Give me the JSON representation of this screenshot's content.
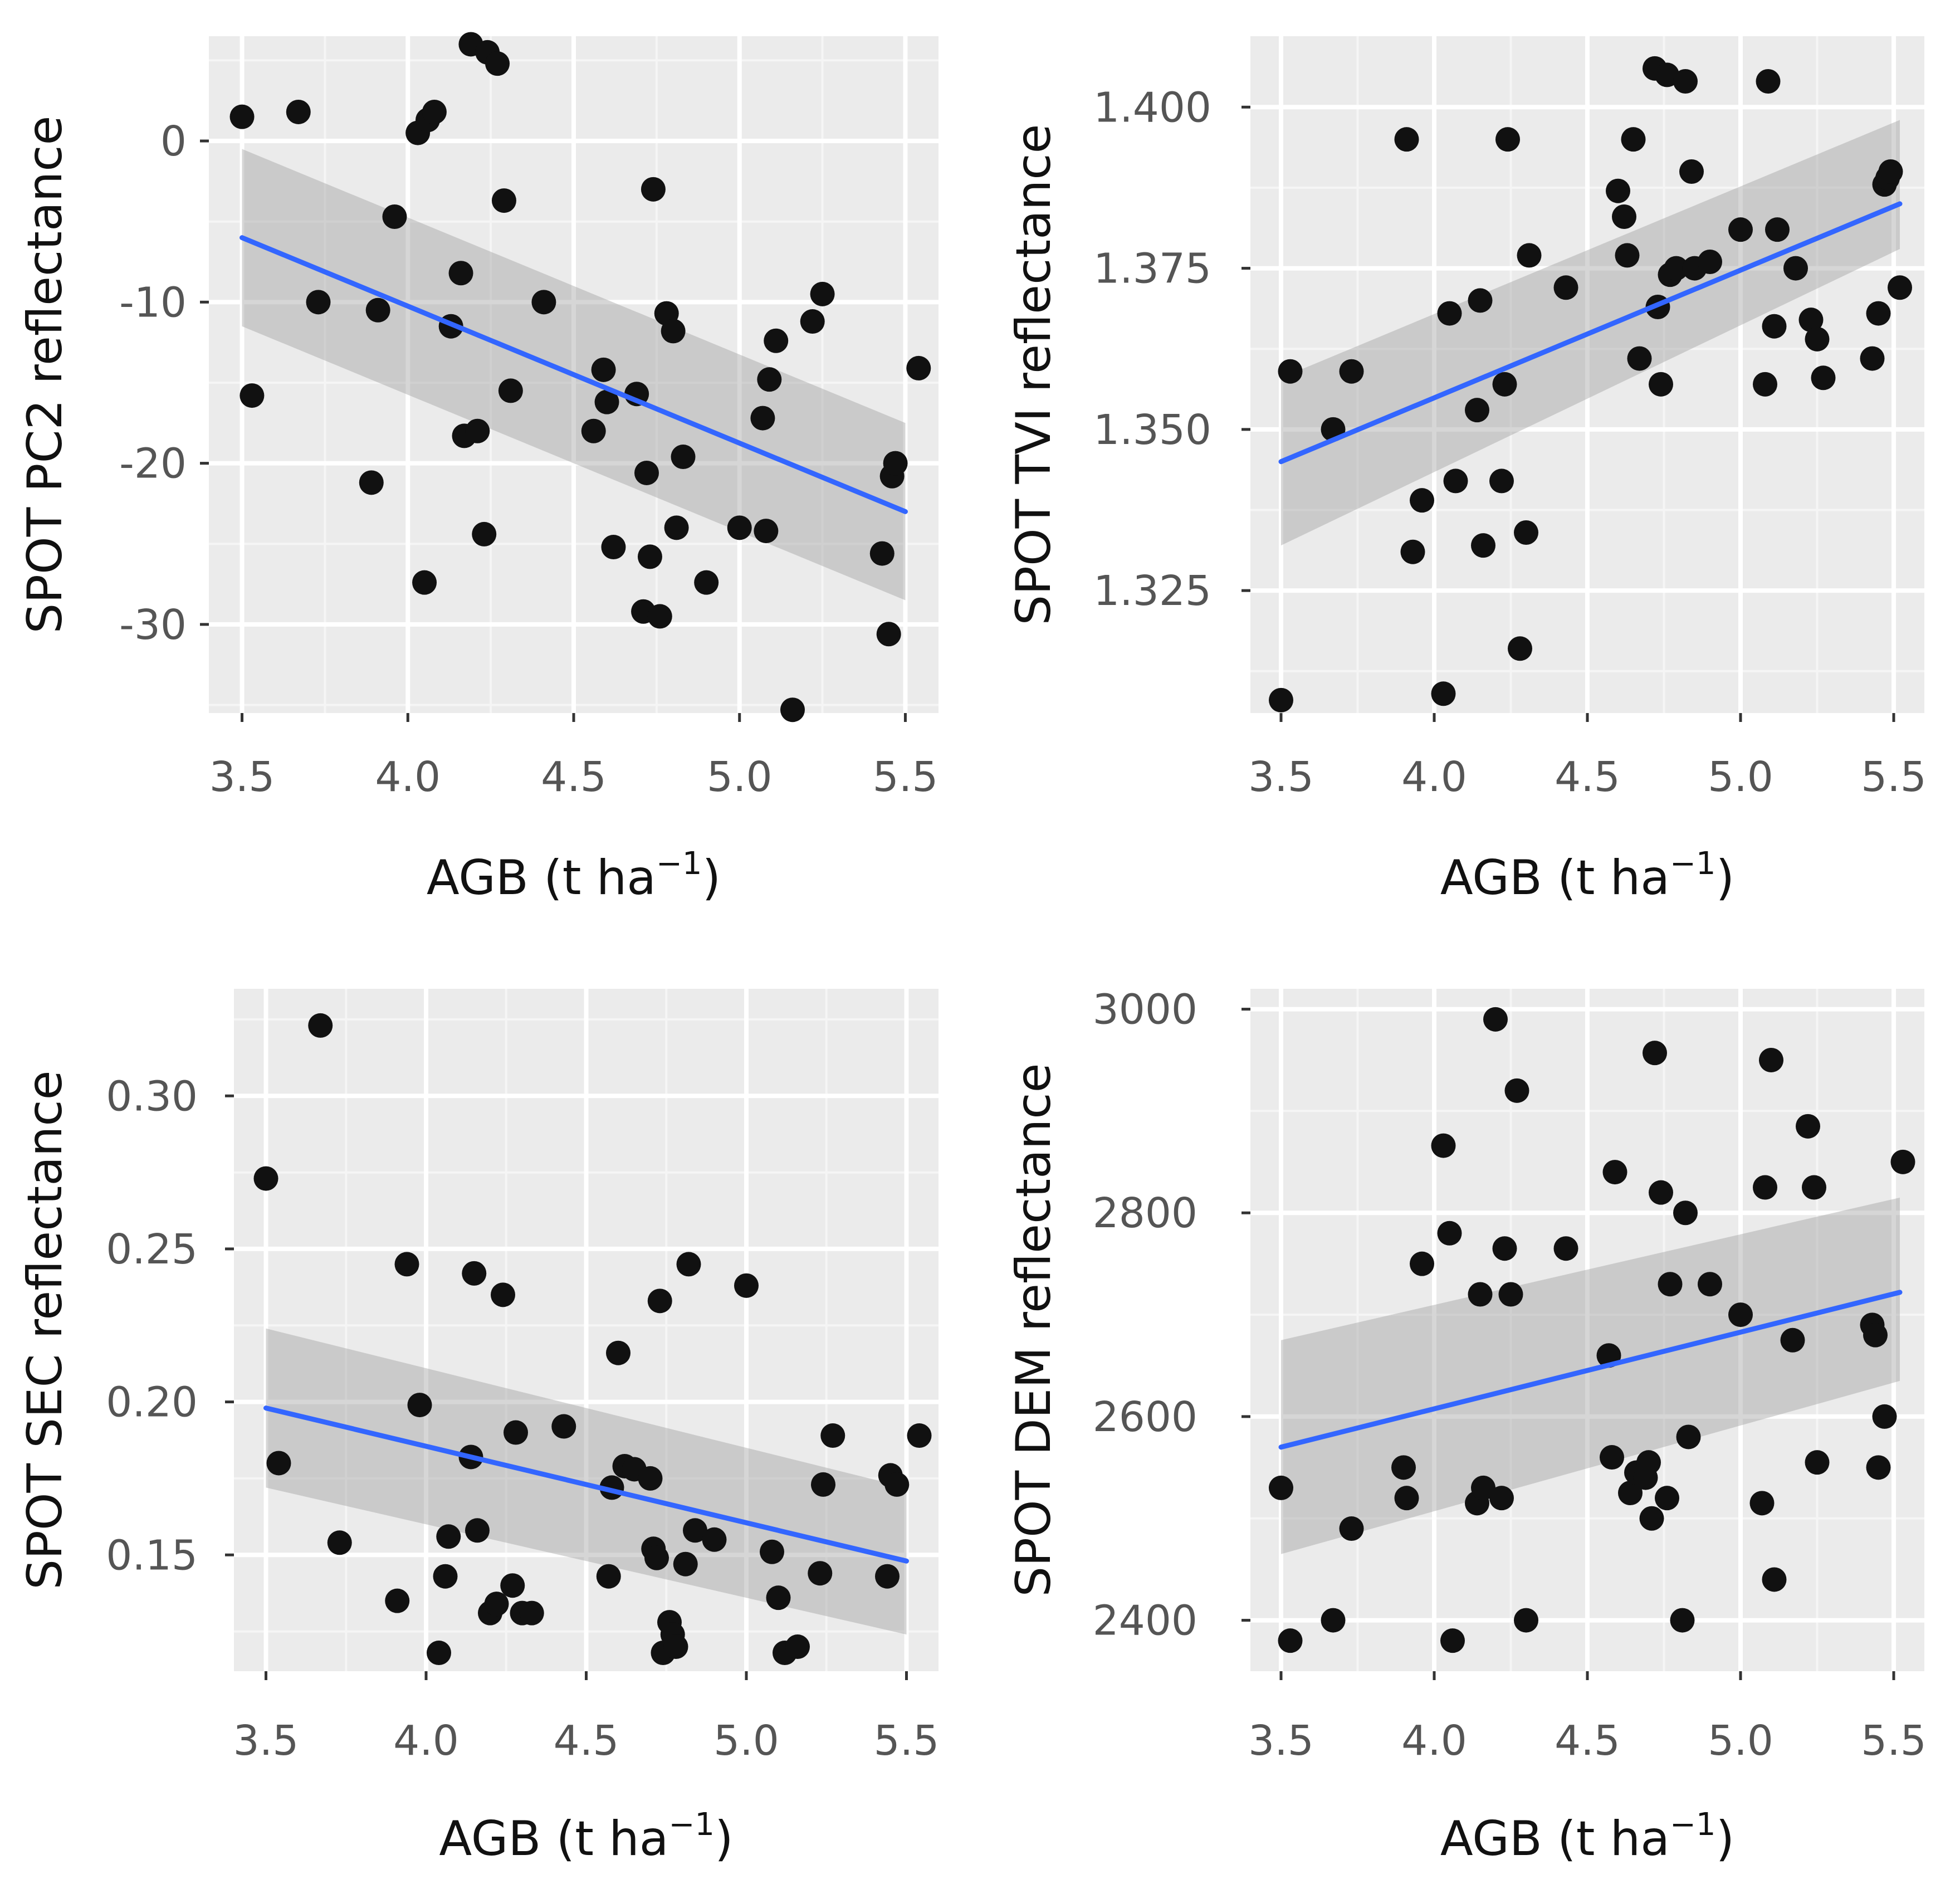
{
  "colors": {
    "panel_bg": "#ebebeb",
    "grid_major": "#ffffff",
    "grid_minor": "#f5f5f5",
    "point": "#111111",
    "fit_line": "#3366ff",
    "ci_band": "#999999"
  },
  "chart_data": [
    {
      "type": "scatter",
      "title": "",
      "xlabel": "AGB (t ha",
      "xlabel_sup": "−1",
      "xlabel_close": ")",
      "ylabel": "SPOT PC2 reflectance",
      "xlim": [
        3.4,
        5.6
      ],
      "ylim": [
        -35.5,
        6.5
      ],
      "xticks": [
        3.5,
        4.0,
        4.5,
        5.0,
        5.5
      ],
      "xtick_labels": [
        "3.5",
        "4.0",
        "4.5",
        "5.0",
        "5.5"
      ],
      "yticks": [
        0,
        -10,
        -20,
        -30
      ],
      "ytick_labels": [
        "0",
        "-10",
        "-20",
        "-30"
      ],
      "x": [
        3.5,
        3.53,
        3.67,
        3.73,
        3.89,
        3.91,
        3.96,
        4.03,
        4.05,
        4.06,
        4.08,
        4.13,
        4.16,
        4.17,
        4.19,
        4.21,
        4.23,
        4.24,
        4.27,
        4.29,
        4.31,
        4.41,
        4.56,
        4.59,
        4.6,
        4.62,
        4.69,
        4.71,
        4.72,
        4.73,
        4.74,
        4.76,
        4.78,
        4.8,
        4.81,
        4.83,
        4.9,
        5.0,
        5.07,
        5.08,
        5.09,
        5.11,
        5.16,
        5.22,
        5.25,
        5.43,
        5.45,
        5.46,
        5.47,
        5.54
      ],
      "y": [
        1.5,
        -15.8,
        1.8,
        -10,
        -21.2,
        -10.5,
        -4.7,
        0.5,
        -27.4,
        1.3,
        1.8,
        -11.5,
        -8.2,
        -18.3,
        6,
        -18,
        -24.4,
        5.5,
        4.8,
        -3.7,
        -15.5,
        -10,
        -18,
        -14.2,
        -16.2,
        -25.2,
        -15.7,
        -29.2,
        -20.6,
        -25.8,
        -3,
        -29.5,
        -10.7,
        -11.8,
        -24,
        -19.6,
        -27.4,
        -24,
        -17.2,
        -24.2,
        -14.8,
        -12.4,
        -35.3,
        -11.2,
        -9.5,
        -25.6,
        -30.6,
        -20.8,
        -20,
        -14.1
      ],
      "fit": {
        "x": [
          3.5,
          5.5
        ],
        "y": [
          -6,
          -23
        ],
        "ci_low": [
          -11.5,
          -28.5
        ],
        "ci_high": [
          -0.5,
          -17.5
        ]
      }
    },
    {
      "type": "scatter",
      "title": "",
      "xlabel": "AGB (t ha",
      "xlabel_sup": "−1",
      "xlabel_close": ")",
      "ylabel": "SPOT TVI reflectance",
      "xlim": [
        3.4,
        5.6
      ],
      "ylim": [
        1.306,
        1.411
      ],
      "xticks": [
        3.5,
        4.0,
        4.5,
        5.0,
        5.5
      ],
      "xtick_labels": [
        "3.5",
        "4.0",
        "4.5",
        "5.0",
        "5.5"
      ],
      "yticks": [
        1.4,
        1.375,
        1.35,
        1.325
      ],
      "ytick_labels": [
        "1.400",
        "1.375",
        "1.350",
        "1.325"
      ],
      "x": [
        3.5,
        3.53,
        3.67,
        3.73,
        3.91,
        3.93,
        3.96,
        4.03,
        4.05,
        4.07,
        4.14,
        4.15,
        4.16,
        4.22,
        4.23,
        4.24,
        4.28,
        4.3,
        4.31,
        4.43,
        4.6,
        4.62,
        4.63,
        4.65,
        4.67,
        4.72,
        4.73,
        4.74,
        4.76,
        4.77,
        4.79,
        4.82,
        4.84,
        4.85,
        4.9,
        5.0,
        5.08,
        5.09,
        5.11,
        5.12,
        5.18,
        5.23,
        5.25,
        5.27,
        5.43,
        5.45,
        5.47,
        5.48,
        5.49,
        5.52
      ],
      "y": [
        1.308,
        1.359,
        1.35,
        1.359,
        1.395,
        1.331,
        1.339,
        1.309,
        1.368,
        1.342,
        1.353,
        1.37,
        1.332,
        1.342,
        1.357,
        1.395,
        1.316,
        1.334,
        1.377,
        1.372,
        1.387,
        1.383,
        1.377,
        1.395,
        1.361,
        1.406,
        1.369,
        1.357,
        1.405,
        1.374,
        1.375,
        1.404,
        1.39,
        1.375,
        1.376,
        1.381,
        1.357,
        1.404,
        1.366,
        1.381,
        1.375,
        1.367,
        1.364,
        1.358,
        1.361,
        1.368,
        1.388,
        1.389,
        1.39,
        1.372
      ],
      "fit": {
        "x": [
          3.5,
          5.52
        ],
        "y": [
          1.345,
          1.385
        ],
        "ci_low": [
          1.332,
          1.378
        ],
        "ci_high": [
          1.358,
          1.398
        ]
      }
    },
    {
      "type": "scatter",
      "title": "",
      "xlabel": "AGB (t ha",
      "xlabel_sup": "−1",
      "xlabel_close": ")",
      "ylabel": "SPOT SEC reflectance",
      "xlim": [
        3.4,
        5.6
      ],
      "ylim": [
        0.112,
        0.335
      ],
      "xticks": [
        3.5,
        4.0,
        4.5,
        5.0,
        5.5
      ],
      "xtick_labels": [
        "3.5",
        "4.0",
        "4.5",
        "5.0",
        "5.5"
      ],
      "yticks": [
        0.3,
        0.25,
        0.2,
        0.15
      ],
      "ytick_labels": [
        "0.30",
        "0.25",
        "0.20",
        "0.15"
      ],
      "x": [
        3.5,
        3.54,
        3.67,
        3.73,
        3.91,
        3.94,
        3.98,
        4.04,
        4.06,
        4.07,
        4.14,
        4.15,
        4.16,
        4.2,
        4.22,
        4.24,
        4.27,
        4.28,
        4.3,
        4.33,
        4.43,
        4.57,
        4.58,
        4.6,
        4.62,
        4.65,
        4.7,
        4.71,
        4.72,
        4.73,
        4.74,
        4.76,
        4.77,
        4.78,
        4.81,
        4.82,
        4.84,
        4.9,
        5.0,
        5.08,
        5.1,
        5.12,
        5.16,
        5.23,
        5.24,
        5.27,
        5.44,
        5.45,
        5.47,
        5.54
      ],
      "y": [
        0.273,
        0.18,
        0.323,
        0.154,
        0.135,
        0.245,
        0.199,
        0.118,
        0.143,
        0.156,
        0.182,
        0.242,
        0.158,
        0.131,
        0.134,
        0.235,
        0.14,
        0.19,
        0.131,
        0.131,
        0.192,
        0.143,
        0.172,
        0.216,
        0.179,
        0.178,
        0.175,
        0.152,
        0.149,
        0.233,
        0.118,
        0.128,
        0.124,
        0.12,
        0.147,
        0.245,
        0.158,
        0.155,
        0.238,
        0.151,
        0.136,
        0.118,
        0.12,
        0.144,
        0.173,
        0.189,
        0.143,
        0.176,
        0.173,
        0.189
      ],
      "fit": {
        "x": [
          3.5,
          5.5
        ],
        "y": [
          0.198,
          0.148
        ],
        "ci_low": [
          0.172,
          0.124
        ],
        "ci_high": [
          0.224,
          0.172
        ]
      }
    },
    {
      "type": "scatter",
      "title": "",
      "xlabel": "AGB (t ha",
      "xlabel_sup": "−1",
      "xlabel_close": ")",
      "ylabel": "SPOT DEM reflectance",
      "xlim": [
        3.4,
        5.6
      ],
      "ylim": [
        2350,
        3020
      ],
      "xticks": [
        3.5,
        4.0,
        4.5,
        5.0,
        5.5
      ],
      "xtick_labels": [
        "3.5",
        "4.0",
        "4.5",
        "5.0",
        "5.5"
      ],
      "yticks": [
        3000,
        2800,
        2600,
        2400
      ],
      "ytick_labels": [
        "3000",
        "2800",
        "2600",
        "2400"
      ],
      "x": [
        3.5,
        3.53,
        3.67,
        3.73,
        3.9,
        3.91,
        3.96,
        4.03,
        4.05,
        4.06,
        4.14,
        4.15,
        4.16,
        4.2,
        4.22,
        4.23,
        4.25,
        4.27,
        4.3,
        4.43,
        4.57,
        4.58,
        4.59,
        4.64,
        4.66,
        4.69,
        4.7,
        4.71,
        4.72,
        4.74,
        4.76,
        4.77,
        4.81,
        4.82,
        4.83,
        4.9,
        5.0,
        5.07,
        5.08,
        5.1,
        5.11,
        5.17,
        5.22,
        5.24,
        5.25,
        5.43,
        5.44,
        5.45,
        5.47,
        5.53
      ],
      "y": [
        2530,
        2380,
        2400,
        2490,
        2550,
        2520,
        2750,
        2866,
        2780,
        2380,
        2515,
        2720,
        2530,
        2990,
        2520,
        2765,
        2720,
        2920,
        2400,
        2765,
        2660,
        2560,
        2840,
        2525,
        2545,
        2540,
        2555,
        2500,
        2957,
        2820,
        2520,
        2730,
        2400,
        2800,
        2580,
        2730,
        2700,
        2515,
        2825,
        2950,
        2440,
        2675,
        2885,
        2825,
        2555,
        2690,
        2680,
        2550,
        2600,
        2850
      ],
      "fit": {
        "x": [
          3.5,
          5.52
        ],
        "y": [
          2570,
          2722
        ],
        "ci_low": [
          2465,
          2635
        ],
        "ci_high": [
          2675,
          2815
        ]
      }
    }
  ]
}
